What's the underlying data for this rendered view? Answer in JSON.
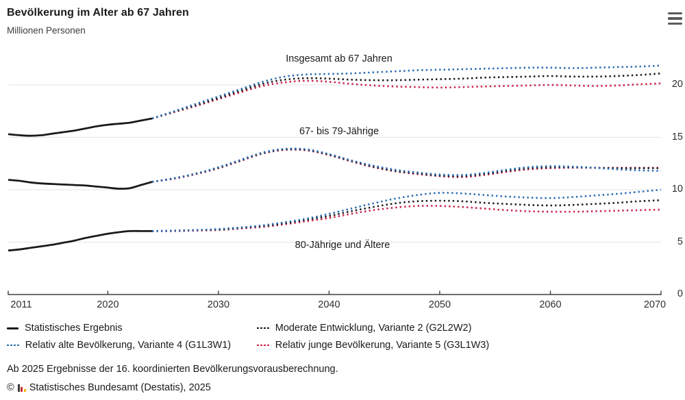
{
  "header": {
    "title": "Bevölkerung im Alter ab 67 Jahren",
    "subtitle": "Millionen Personen"
  },
  "menu": {
    "icon": "hamburger-menu-icon"
  },
  "colors": {
    "blue": "#2a6cb3",
    "red": "#c9234b",
    "black": "#1a1a1a",
    "grid": "#e3e3e3",
    "axis": "#3d3d3d"
  },
  "chart_data": {
    "type": "line",
    "title": "Bevölkerung im Alter ab 67 Jahren",
    "ylabel": "Millionen Personen",
    "xlabel": "",
    "x_range": [
      2011,
      2070
    ],
    "y_range": [
      0,
      23.5
    ],
    "x_ticks": [
      2011,
      2020,
      2030,
      2040,
      2050,
      2060,
      2070
    ],
    "y_ticks": [
      0,
      5,
      10,
      15,
      20
    ],
    "y_axis_position": "right",
    "grid": true,
    "legend_position": "bottom",
    "group_labels": [
      "Insgesamt ab 67 Jahren",
      "67- bis 79-Jährige",
      "80-Jährige und Ältere"
    ],
    "series": [
      {
        "id": "total-variante5",
        "group": "Insgesamt ab 67 Jahren",
        "name": "Relativ junge Bevölkerung, Variante 5 (G3L1W3)",
        "style": "dotted",
        "color": "red",
        "years": [
          2024,
          2026,
          2028,
          2030,
          2032,
          2034,
          2036,
          2038,
          2040,
          2042,
          2044,
          2046,
          2048,
          2050,
          2052,
          2054,
          2056,
          2058,
          2060,
          2062,
          2064,
          2066,
          2068,
          2070
        ],
        "values": [
          16.8,
          17.4,
          18.0,
          18.65,
          19.3,
          19.9,
          20.25,
          20.4,
          20.3,
          20.1,
          19.95,
          19.85,
          19.8,
          19.75,
          19.8,
          19.85,
          19.9,
          19.95,
          20.0,
          19.95,
          19.9,
          19.95,
          20.05,
          20.15
        ]
      },
      {
        "id": "6779-variante5",
        "group": "67- bis 79-Jährige",
        "name": "Relativ junge Bevölkerung, Variante 5 (G3L1W3)",
        "style": "dotted",
        "color": "red",
        "years": [
          2024,
          2026,
          2028,
          2030,
          2032,
          2034,
          2036,
          2038,
          2040,
          2042,
          2044,
          2046,
          2048,
          2050,
          2052,
          2054,
          2056,
          2058,
          2060,
          2062,
          2064,
          2066,
          2068,
          2070
        ],
        "values": [
          10.75,
          11.05,
          11.5,
          12.05,
          12.75,
          13.45,
          13.8,
          13.75,
          13.3,
          12.7,
          12.15,
          11.75,
          11.5,
          11.3,
          11.2,
          11.4,
          11.7,
          11.95,
          12.05,
          12.1,
          12.1,
          12.1,
          12.1,
          12.1
        ]
      },
      {
        "id": "80plus-variante5",
        "group": "80-Jährige und Ältere",
        "name": "Relativ junge Bevölkerung, Variante 5 (G3L1W3)",
        "style": "dotted",
        "color": "red",
        "years": [
          2024,
          2026,
          2028,
          2030,
          2032,
          2034,
          2036,
          2038,
          2040,
          2042,
          2044,
          2046,
          2048,
          2050,
          2052,
          2054,
          2056,
          2058,
          2060,
          2062,
          2064,
          2066,
          2068,
          2070
        ],
        "values": [
          6.05,
          6.05,
          6.1,
          6.15,
          6.3,
          6.45,
          6.7,
          7.0,
          7.3,
          7.7,
          8.05,
          8.3,
          8.45,
          8.45,
          8.35,
          8.2,
          8.05,
          7.95,
          7.9,
          7.9,
          7.95,
          8.0,
          8.05,
          8.1
        ]
      },
      {
        "id": "total-variante2",
        "group": "Insgesamt ab 67 Jahren",
        "name": "Moderate Entwicklung, Variante 2 (G2L2W2)",
        "style": "dotted",
        "color": "black",
        "years": [
          2024,
          2026,
          2028,
          2030,
          2032,
          2034,
          2036,
          2038,
          2040,
          2042,
          2044,
          2046,
          2048,
          2050,
          2052,
          2054,
          2056,
          2058,
          2060,
          2062,
          2064,
          2066,
          2068,
          2070
        ],
        "values": [
          16.8,
          17.45,
          18.1,
          18.75,
          19.45,
          20.1,
          20.5,
          20.65,
          20.6,
          20.5,
          20.45,
          20.45,
          20.5,
          20.55,
          20.6,
          20.7,
          20.75,
          20.8,
          20.85,
          20.8,
          20.8,
          20.85,
          20.95,
          21.1
        ]
      },
      {
        "id": "6779-variante2",
        "group": "67- bis 79-Jährige",
        "name": "Moderate Entwicklung, Variante 2 (G2L2W2)",
        "style": "dotted",
        "color": "black",
        "years": [
          2024,
          2026,
          2028,
          2030,
          2032,
          2034,
          2036,
          2038,
          2040,
          2042,
          2044,
          2046,
          2048,
          2050,
          2052,
          2054,
          2056,
          2058,
          2060,
          2062,
          2064,
          2066,
          2068,
          2070
        ],
        "values": [
          10.75,
          11.1,
          11.55,
          12.1,
          12.8,
          13.5,
          13.85,
          13.8,
          13.35,
          12.75,
          12.2,
          11.8,
          11.55,
          11.35,
          11.3,
          11.5,
          11.8,
          12.05,
          12.15,
          12.15,
          12.1,
          12.05,
          12.05,
          12.05
        ]
      },
      {
        "id": "80plus-variante2",
        "group": "80-Jährige und Ältere",
        "name": "Moderate Entwicklung, Variante 2 (G2L2W2)",
        "style": "dotted",
        "color": "black",
        "years": [
          2024,
          2026,
          2028,
          2030,
          2032,
          2034,
          2036,
          2038,
          2040,
          2042,
          2044,
          2046,
          2048,
          2050,
          2052,
          2054,
          2056,
          2058,
          2060,
          2062,
          2064,
          2066,
          2068,
          2070
        ],
        "values": [
          6.05,
          6.1,
          6.15,
          6.2,
          6.35,
          6.55,
          6.8,
          7.15,
          7.5,
          7.95,
          8.35,
          8.7,
          8.9,
          8.95,
          8.9,
          8.75,
          8.65,
          8.55,
          8.5,
          8.55,
          8.65,
          8.75,
          8.9,
          9.0
        ]
      },
      {
        "id": "total-variante4",
        "group": "Insgesamt ab 67 Jahren",
        "name": "Relativ alte Bevölkerung, Variante 4 (G1L3W1)",
        "style": "dotted",
        "color": "blue",
        "years": [
          2024,
          2026,
          2028,
          2030,
          2032,
          2034,
          2036,
          2038,
          2040,
          2042,
          2044,
          2046,
          2048,
          2050,
          2052,
          2054,
          2056,
          2058,
          2060,
          2062,
          2064,
          2066,
          2068,
          2070
        ],
        "values": [
          16.8,
          17.5,
          18.2,
          18.9,
          19.6,
          20.3,
          20.8,
          21.0,
          21.05,
          21.1,
          21.2,
          21.3,
          21.4,
          21.45,
          21.5,
          21.55,
          21.6,
          21.65,
          21.65,
          21.6,
          21.65,
          21.7,
          21.75,
          21.85
        ]
      },
      {
        "id": "6779-variante4",
        "group": "67- bis 79-Jährige",
        "name": "Relativ alte Bevölkerung, Variante 4 (G1L3W1)",
        "style": "dotted",
        "color": "blue",
        "years": [
          2024,
          2026,
          2028,
          2030,
          2032,
          2034,
          2036,
          2038,
          2040,
          2042,
          2044,
          2046,
          2048,
          2050,
          2052,
          2054,
          2056,
          2058,
          2060,
          2062,
          2064,
          2066,
          2068,
          2070
        ],
        "values": [
          10.75,
          11.1,
          11.55,
          12.15,
          12.85,
          13.55,
          13.9,
          13.85,
          13.4,
          12.8,
          12.3,
          11.9,
          11.65,
          11.45,
          11.4,
          11.6,
          11.9,
          12.15,
          12.25,
          12.2,
          12.1,
          11.95,
          11.85,
          11.8
        ]
      },
      {
        "id": "80plus-variante4",
        "group": "80-Jährige und Ältere",
        "name": "Relativ alte Bevölkerung, Variante 4 (G1L3W1)",
        "style": "dotted",
        "color": "blue",
        "years": [
          2024,
          2026,
          2028,
          2030,
          2032,
          2034,
          2036,
          2038,
          2040,
          2042,
          2044,
          2046,
          2048,
          2050,
          2052,
          2054,
          2056,
          2058,
          2060,
          2062,
          2064,
          2066,
          2068,
          2070
        ],
        "values": [
          6.05,
          6.1,
          6.15,
          6.25,
          6.4,
          6.6,
          6.9,
          7.25,
          7.7,
          8.2,
          8.7,
          9.15,
          9.5,
          9.7,
          9.65,
          9.5,
          9.35,
          9.25,
          9.2,
          9.3,
          9.45,
          9.6,
          9.8,
          10.0
        ]
      },
      {
        "id": "total-statistisch",
        "group": "Insgesamt ab 67 Jahren",
        "name": "Statistisches Ergebnis",
        "style": "solid",
        "color": "black",
        "years": [
          2011,
          2012,
          2013,
          2014,
          2015,
          2016,
          2017,
          2018,
          2019,
          2020,
          2021,
          2022,
          2023,
          2024
        ],
        "values": [
          15.3,
          15.2,
          15.15,
          15.2,
          15.35,
          15.5,
          15.65,
          15.85,
          16.05,
          16.2,
          16.3,
          16.4,
          16.6,
          16.8
        ]
      },
      {
        "id": "6779-statistisch",
        "group": "67- bis 79-Jährige",
        "name": "Statistisches Ergebnis",
        "style": "solid",
        "color": "black",
        "years": [
          2011,
          2012,
          2013,
          2014,
          2015,
          2016,
          2017,
          2018,
          2019,
          2020,
          2021,
          2022,
          2023,
          2024
        ],
        "values": [
          10.95,
          10.85,
          10.7,
          10.6,
          10.55,
          10.5,
          10.45,
          10.4,
          10.3,
          10.2,
          10.1,
          10.15,
          10.45,
          10.75
        ]
      },
      {
        "id": "80plus-statistisch",
        "group": "80-Jährige und Ältere",
        "name": "Statistisches Ergebnis",
        "style": "solid",
        "color": "black",
        "years": [
          2011,
          2012,
          2013,
          2014,
          2015,
          2016,
          2017,
          2018,
          2019,
          2020,
          2021,
          2022,
          2023,
          2024
        ],
        "values": [
          4.2,
          4.3,
          4.45,
          4.6,
          4.75,
          4.95,
          5.15,
          5.4,
          5.6,
          5.8,
          5.95,
          6.05,
          6.05,
          6.05
        ]
      }
    ]
  },
  "legend": {
    "items": [
      {
        "label": "Statistisches Ergebnis",
        "style": "solid",
        "color": "black"
      },
      {
        "label": "Moderate Entwicklung, Variante 2 (G2L2W2)",
        "style": "dotted",
        "color": "black"
      },
      {
        "label": "Relativ alte Bevölkerung, Variante 4 (G1L3W1)",
        "style": "dotted",
        "color": "blue"
      },
      {
        "label": "Relativ junge Bevölkerung, Variante 5 (G3L1W3)",
        "style": "dotted",
        "color": "red"
      }
    ]
  },
  "footnote": "Ab 2025 Ergebnisse der 16. koordinierten Bevölkerungsvorausberechnung.",
  "copyright": {
    "prefix": "©",
    "logo": "destatis-bar-chart-logo",
    "text": "Statistisches Bundesamt (Destatis), 2025"
  }
}
